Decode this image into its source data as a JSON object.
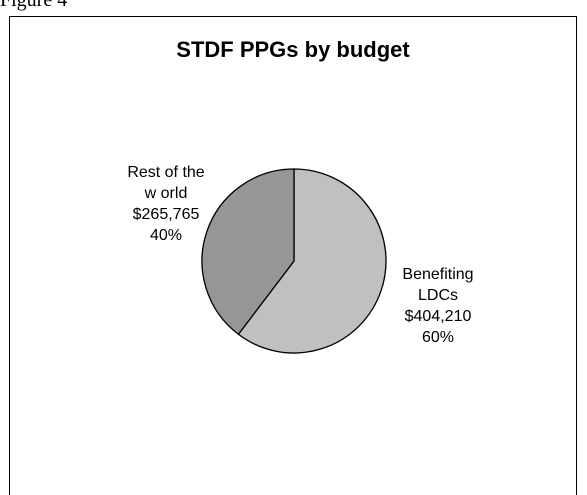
{
  "caption": "Figure 4",
  "chart_data": {
    "type": "pie",
    "title": "STDF PPGs by budget",
    "slices": [
      {
        "name_lines": [
          "Benefiting",
          "LDCs"
        ],
        "value": 404210,
        "value_label": "$404,210",
        "percent": 60,
        "percent_label": "60%",
        "color": "#c0c0c0"
      },
      {
        "name_lines": [
          "Rest of the",
          "w orld"
        ],
        "value": 265765,
        "value_label": "$265,765",
        "percent": 40,
        "percent_label": "40%",
        "color": "#969696"
      }
    ],
    "start_angle_deg": 0,
    "direction": "clockwise",
    "legend": "none"
  },
  "colors": {
    "outline": "#000000",
    "background": "#ffffff"
  }
}
